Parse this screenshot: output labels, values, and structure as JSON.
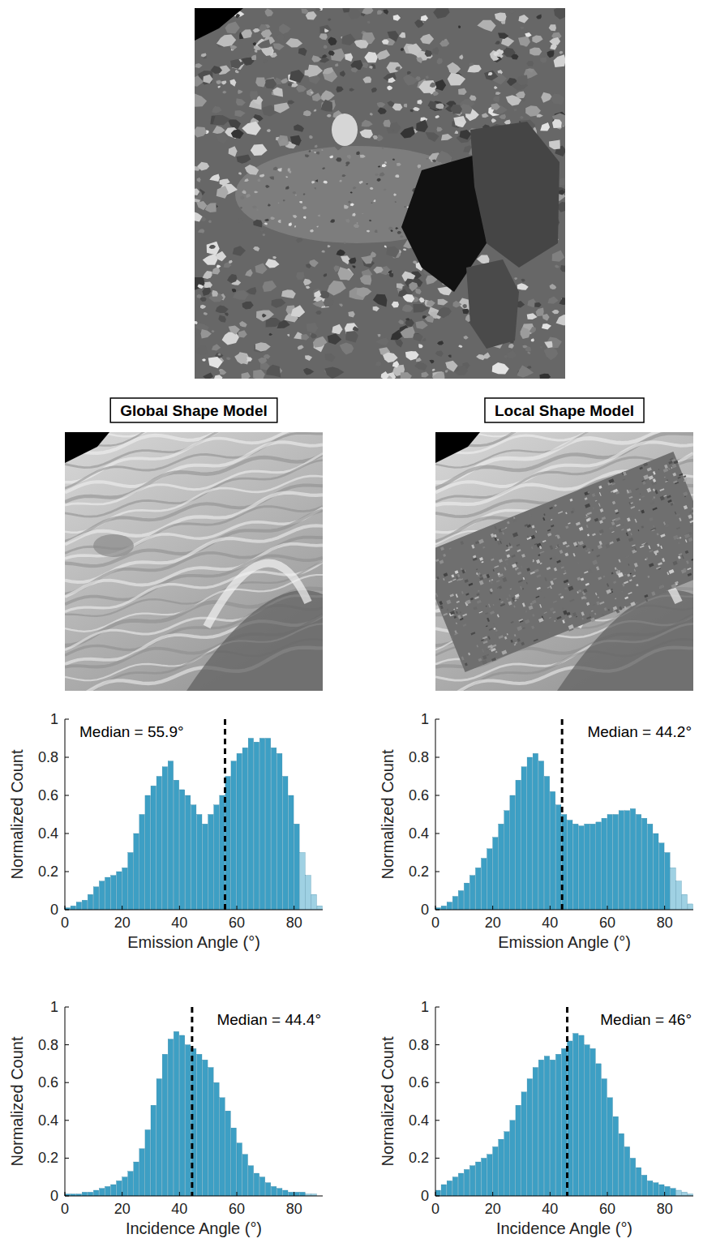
{
  "panels": [
    {
      "title": "Global Shape Model"
    },
    {
      "title": "Local Shape Model"
    }
  ],
  "chart_data": [
    {
      "type": "histogram",
      "xlabel": "Emission Angle (°)",
      "ylabel": "Normalized Count",
      "bins": [
        0,
        2,
        4,
        6,
        8,
        10,
        12,
        14,
        16,
        18,
        20,
        22,
        24,
        26,
        28,
        30,
        32,
        34,
        36,
        38,
        40,
        42,
        44,
        46,
        48,
        50,
        52,
        54,
        56,
        58,
        60,
        62,
        64,
        66,
        68,
        70,
        72,
        74,
        76,
        78,
        80,
        82,
        84,
        86,
        88,
        90
      ],
      "values": [
        0.01,
        0.02,
        0.04,
        0.05,
        0.08,
        0.12,
        0.15,
        0.17,
        0.18,
        0.2,
        0.22,
        0.3,
        0.4,
        0.5,
        0.6,
        0.65,
        0.7,
        0.75,
        0.78,
        0.68,
        0.63,
        0.6,
        0.55,
        0.5,
        0.45,
        0.5,
        0.55,
        0.6,
        0.7,
        0.78,
        0.82,
        0.85,
        0.9,
        0.88,
        0.9,
        0.9,
        0.85,
        0.82,
        0.7,
        0.6,
        0.45,
        0.3,
        0.18,
        0.08,
        0.02
      ],
      "colors": [
        "#3d9fc4",
        "#3d9fc4",
        "#3d9fc4",
        "#3d9fc4",
        "#3d9fc4",
        "#3d9fc4",
        "#3d9fc4",
        "#3d9fc4",
        "#3d9fc4",
        "#3d9fc4",
        "#3d9fc4",
        "#3d9fc4",
        "#3d9fc4",
        "#3d9fc4",
        "#3d9fc4",
        "#3d9fc4",
        "#3d9fc4",
        "#3d9fc4",
        "#3d9fc4",
        "#3d9fc4",
        "#3d9fc4",
        "#3d9fc4",
        "#3d9fc4",
        "#3d9fc4",
        "#3d9fc4",
        "#3d9fc4",
        "#3d9fc4",
        "#3d9fc4",
        "#3d9fc4",
        "#3d9fc4",
        "#3d9fc4",
        "#3d9fc4",
        "#3d9fc4",
        "#3d9fc4",
        "#3d9fc4",
        "#3d9fc4",
        "#3d9fc4",
        "#3d9fc4",
        "#3d9fc4",
        "#3d9fc4",
        "#3d9fc4",
        "#9fd1e3",
        "#9fd1e3",
        "#9fd1e3",
        "#9fd1e3"
      ],
      "xlim": [
        0,
        90
      ],
      "xticks": [
        0,
        20,
        40,
        60,
        80
      ],
      "ylim": [
        0,
        1
      ],
      "yticks": [
        0,
        0.2,
        0.4,
        0.6,
        0.8,
        1
      ],
      "median": {
        "value": 55.9,
        "label": "Median = 55.9°"
      }
    },
    {
      "type": "histogram",
      "xlabel": "Emission Angle (°)",
      "ylabel": "Normalized Count",
      "bins": [
        0,
        2,
        4,
        6,
        8,
        10,
        12,
        14,
        16,
        18,
        20,
        22,
        24,
        26,
        28,
        30,
        32,
        34,
        36,
        38,
        40,
        42,
        44,
        46,
        48,
        50,
        52,
        54,
        56,
        58,
        60,
        62,
        64,
        66,
        68,
        70,
        72,
        74,
        76,
        78,
        80,
        82,
        84,
        86,
        88,
        90
      ],
      "values": [
        0.01,
        0.02,
        0.04,
        0.07,
        0.1,
        0.14,
        0.18,
        0.22,
        0.27,
        0.32,
        0.38,
        0.45,
        0.52,
        0.6,
        0.68,
        0.75,
        0.8,
        0.82,
        0.78,
        0.7,
        0.62,
        0.55,
        0.5,
        0.47,
        0.45,
        0.44,
        0.45,
        0.45,
        0.46,
        0.48,
        0.5,
        0.5,
        0.52,
        0.52,
        0.53,
        0.5,
        0.48,
        0.45,
        0.4,
        0.35,
        0.3,
        0.22,
        0.15,
        0.08,
        0.03
      ],
      "colors": [
        "#3d9fc4",
        "#3d9fc4",
        "#3d9fc4",
        "#3d9fc4",
        "#3d9fc4",
        "#3d9fc4",
        "#3d9fc4",
        "#3d9fc4",
        "#3d9fc4",
        "#3d9fc4",
        "#3d9fc4",
        "#3d9fc4",
        "#3d9fc4",
        "#3d9fc4",
        "#3d9fc4",
        "#3d9fc4",
        "#3d9fc4",
        "#3d9fc4",
        "#3d9fc4",
        "#3d9fc4",
        "#3d9fc4",
        "#3d9fc4",
        "#3d9fc4",
        "#3d9fc4",
        "#3d9fc4",
        "#3d9fc4",
        "#3d9fc4",
        "#3d9fc4",
        "#3d9fc4",
        "#3d9fc4",
        "#3d9fc4",
        "#3d9fc4",
        "#3d9fc4",
        "#3d9fc4",
        "#3d9fc4",
        "#3d9fc4",
        "#3d9fc4",
        "#3d9fc4",
        "#3d9fc4",
        "#3d9fc4",
        "#3d9fc4",
        "#9fd1e3",
        "#9fd1e3",
        "#9fd1e3",
        "#9fd1e3"
      ],
      "xlim": [
        0,
        90
      ],
      "xticks": [
        0,
        20,
        40,
        60,
        80
      ],
      "ylim": [
        0,
        1
      ],
      "yticks": [
        0,
        0.2,
        0.4,
        0.6,
        0.8,
        1
      ],
      "median": {
        "value": 44.2,
        "label": "Median = 44.2°"
      }
    },
    {
      "type": "histogram",
      "xlabel": "Incidence Angle (°)",
      "ylabel": "Normalized Count",
      "bins": [
        0,
        2,
        4,
        6,
        8,
        10,
        12,
        14,
        16,
        18,
        20,
        22,
        24,
        26,
        28,
        30,
        32,
        34,
        36,
        38,
        40,
        42,
        44,
        46,
        48,
        50,
        52,
        54,
        56,
        58,
        60,
        62,
        64,
        66,
        68,
        70,
        72,
        74,
        76,
        78,
        80,
        82,
        84,
        86,
        88,
        90
      ],
      "values": [
        0.01,
        0.01,
        0.01,
        0.02,
        0.02,
        0.03,
        0.04,
        0.05,
        0.06,
        0.08,
        0.1,
        0.13,
        0.18,
        0.25,
        0.35,
        0.48,
        0.62,
        0.75,
        0.83,
        0.87,
        0.85,
        0.8,
        0.78,
        0.75,
        0.72,
        0.68,
        0.6,
        0.52,
        0.45,
        0.36,
        0.28,
        0.22,
        0.16,
        0.12,
        0.1,
        0.07,
        0.05,
        0.04,
        0.03,
        0.02,
        0.02,
        0.02,
        0.01,
        0.01,
        0
      ],
      "colors": [
        "#3d9fc4",
        "#3d9fc4",
        "#3d9fc4",
        "#3d9fc4",
        "#3d9fc4",
        "#3d9fc4",
        "#3d9fc4",
        "#3d9fc4",
        "#3d9fc4",
        "#3d9fc4",
        "#3d9fc4",
        "#3d9fc4",
        "#3d9fc4",
        "#3d9fc4",
        "#3d9fc4",
        "#3d9fc4",
        "#3d9fc4",
        "#3d9fc4",
        "#3d9fc4",
        "#3d9fc4",
        "#3d9fc4",
        "#3d9fc4",
        "#3d9fc4",
        "#3d9fc4",
        "#3d9fc4",
        "#3d9fc4",
        "#3d9fc4",
        "#3d9fc4",
        "#3d9fc4",
        "#3d9fc4",
        "#3d9fc4",
        "#3d9fc4",
        "#3d9fc4",
        "#3d9fc4",
        "#3d9fc4",
        "#3d9fc4",
        "#3d9fc4",
        "#3d9fc4",
        "#3d9fc4",
        "#3d9fc4",
        "#3d9fc4",
        "#3d9fc4",
        "#9fd1e3",
        "#9fd1e3",
        "#9fd1e3"
      ],
      "xlim": [
        0,
        90
      ],
      "xticks": [
        0,
        20,
        40,
        60,
        80
      ],
      "ylim": [
        0,
        1
      ],
      "yticks": [
        0,
        0.2,
        0.4,
        0.6,
        0.8,
        1
      ],
      "median": {
        "value": 44.4,
        "label": "Median = 44.4°"
      }
    },
    {
      "type": "histogram",
      "xlabel": "Incidence Angle (°)",
      "ylabel": "Normalized Count",
      "bins": [
        0,
        2,
        4,
        6,
        8,
        10,
        12,
        14,
        16,
        18,
        20,
        22,
        24,
        26,
        28,
        30,
        32,
        34,
        36,
        38,
        40,
        42,
        44,
        46,
        48,
        50,
        52,
        54,
        56,
        58,
        60,
        62,
        64,
        66,
        68,
        70,
        72,
        74,
        76,
        78,
        80,
        82,
        84,
        86,
        88,
        90
      ],
      "values": [
        0.03,
        0.06,
        0.08,
        0.1,
        0.12,
        0.14,
        0.16,
        0.18,
        0.2,
        0.22,
        0.26,
        0.3,
        0.34,
        0.4,
        0.48,
        0.55,
        0.62,
        0.68,
        0.72,
        0.74,
        0.72,
        0.75,
        0.78,
        0.82,
        0.86,
        0.85,
        0.8,
        0.78,
        0.7,
        0.62,
        0.52,
        0.42,
        0.33,
        0.26,
        0.2,
        0.15,
        0.11,
        0.08,
        0.07,
        0.06,
        0.05,
        0.04,
        0.03,
        0.02,
        0.01
      ],
      "colors": [
        "#3d9fc4",
        "#3d9fc4",
        "#3d9fc4",
        "#3d9fc4",
        "#3d9fc4",
        "#3d9fc4",
        "#3d9fc4",
        "#3d9fc4",
        "#3d9fc4",
        "#3d9fc4",
        "#3d9fc4",
        "#3d9fc4",
        "#3d9fc4",
        "#3d9fc4",
        "#3d9fc4",
        "#3d9fc4",
        "#3d9fc4",
        "#3d9fc4",
        "#3d9fc4",
        "#3d9fc4",
        "#3d9fc4",
        "#3d9fc4",
        "#3d9fc4",
        "#3d9fc4",
        "#3d9fc4",
        "#3d9fc4",
        "#3d9fc4",
        "#3d9fc4",
        "#3d9fc4",
        "#3d9fc4",
        "#3d9fc4",
        "#3d9fc4",
        "#3d9fc4",
        "#3d9fc4",
        "#3d9fc4",
        "#3d9fc4",
        "#3d9fc4",
        "#3d9fc4",
        "#3d9fc4",
        "#3d9fc4",
        "#3d9fc4",
        "#3d9fc4",
        "#9fd1e3",
        "#9fd1e3",
        "#9fd1e3"
      ],
      "xlim": [
        0,
        90
      ],
      "xticks": [
        0,
        20,
        40,
        60,
        80
      ],
      "ylim": [
        0,
        1
      ],
      "yticks": [
        0,
        0.2,
        0.4,
        0.6,
        0.8,
        1
      ],
      "median": {
        "value": 46,
        "label": "Median = 46°"
      }
    }
  ]
}
